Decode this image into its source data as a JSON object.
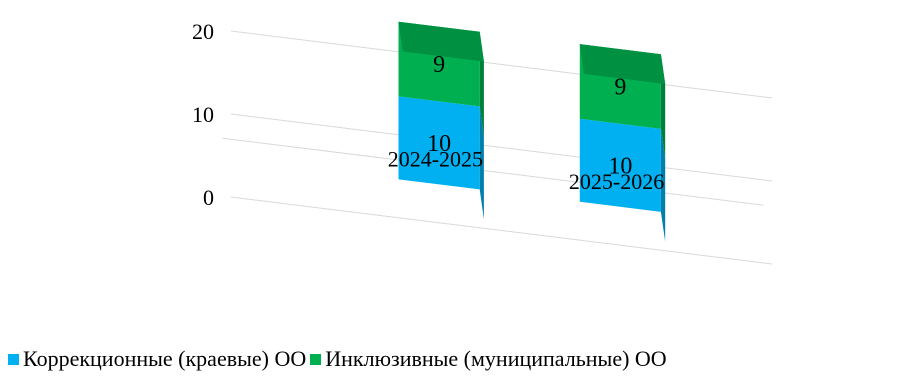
{
  "chart_data": {
    "type": "bar",
    "stacked": true,
    "three_d": true,
    "categories": [
      "2024-2025",
      "2025-2026"
    ],
    "series": [
      {
        "name": "Коррекционные (краевые) ОО",
        "values": [
          10,
          10
        ],
        "color": "#00B0F0"
      },
      {
        "name": "Инклюзивные (муниципальные) ОО",
        "values": [
          9,
          9
        ],
        "color": "#00B050"
      }
    ],
    "y_ticks": [
      "0",
      "10",
      "20"
    ],
    "ylim": [
      0,
      20
    ],
    "grid": true,
    "legend_position": "bottom",
    "title": "",
    "xlabel": "",
    "ylabel": ""
  }
}
